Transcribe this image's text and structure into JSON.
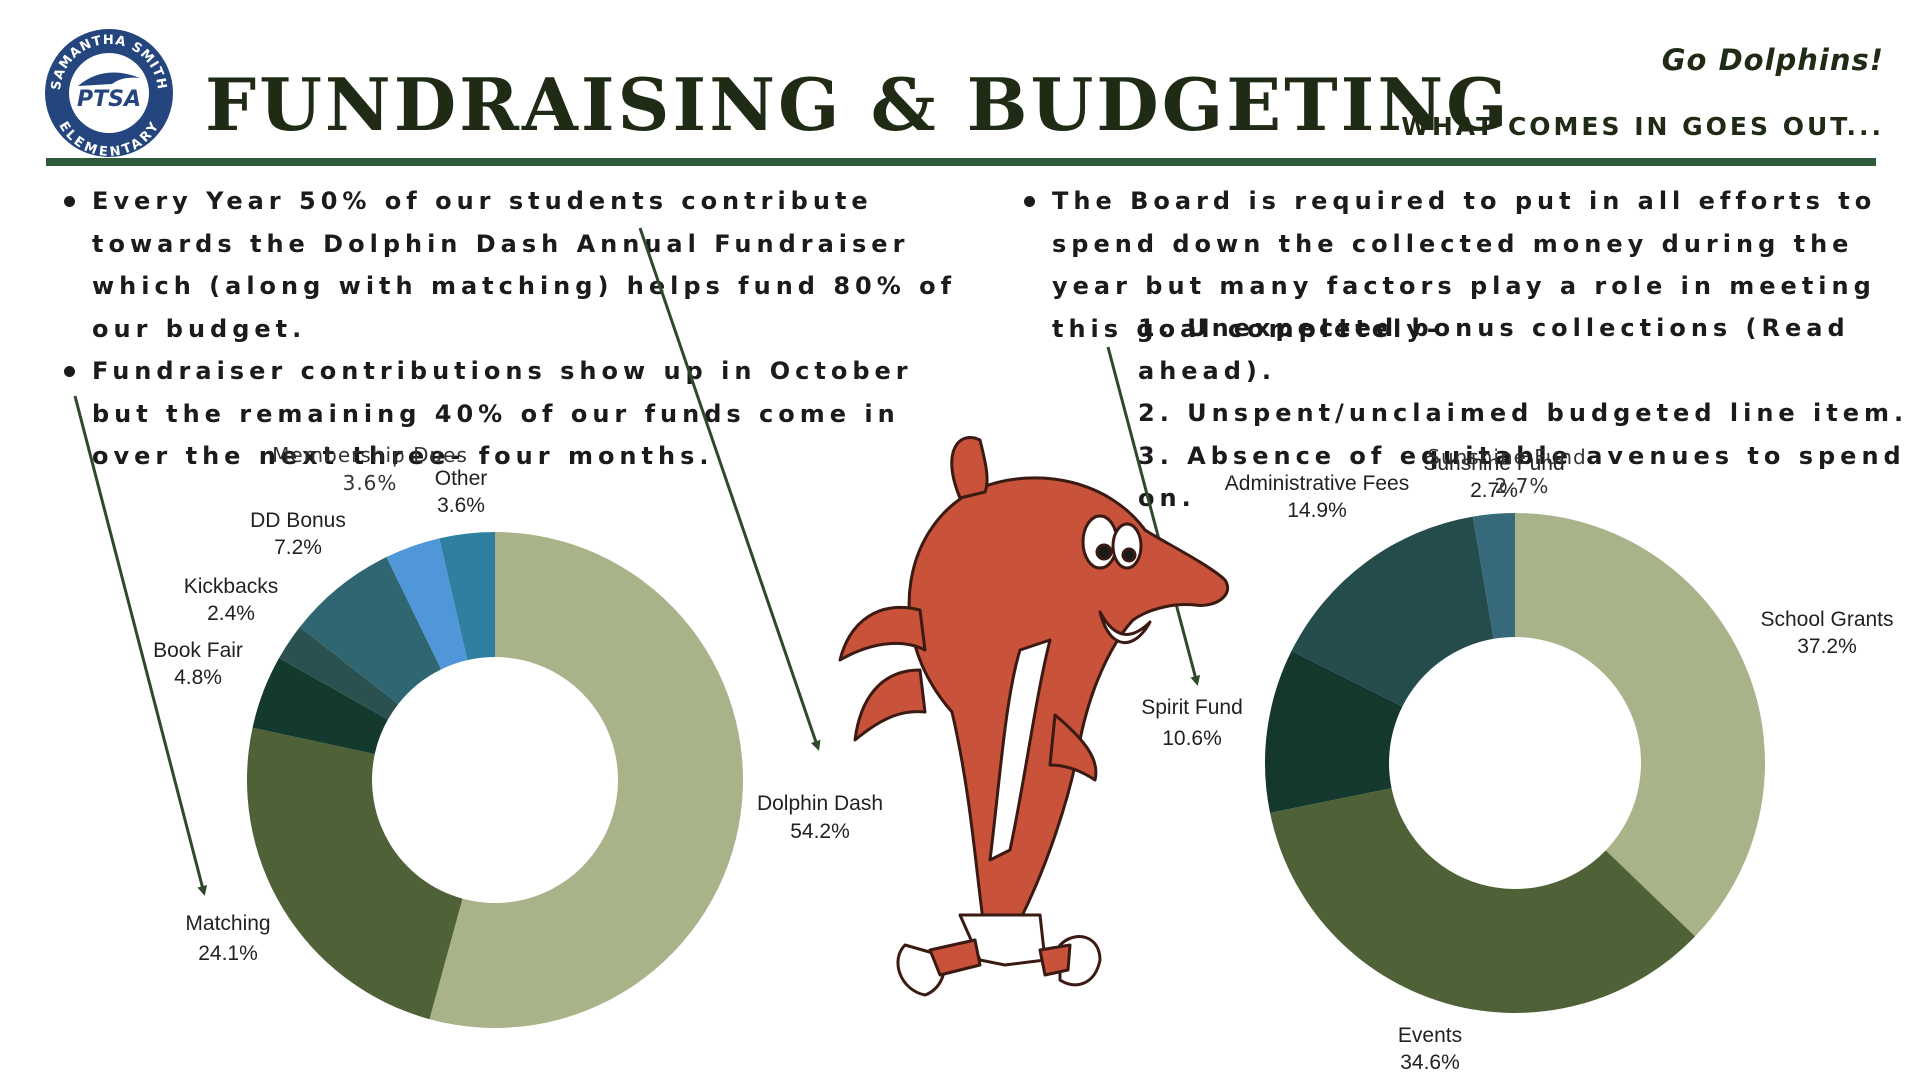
{
  "header": {
    "title": "FUNDRAISING & BUDGETING",
    "tagline": "Go Dolphins!",
    "subtitle": "WHAT COMES IN GOES OUT...",
    "logo_text": [
      "SAMANTHA SMITH",
      "PTSA",
      "ELEMENTARY"
    ]
  },
  "left_bullets": [
    "Every Year 50% of our students contribute towards the Dolphin Dash Annual Fundraiser which (along with matching) helps fund 80% of our budget.",
    "Fundraiser contributions show up in October but the remaining 40% of our funds come in over the next three- four months."
  ],
  "right_bullets": [
    "The Board is required to put in all efforts to spend down the collected money during the year but many factors play a role in meeting this goal completely-"
  ],
  "right_numbered": [
    "1. Unexpected bonus collections (Read ahead).",
    "2. Unspent/unclaimed budgeted line item.",
    "3. Absence of equitable avenues to spend on."
  ],
  "colors": {
    "title": "#1f2b15",
    "rule": "#2e5c3a",
    "arrow": "#2e4a2a",
    "mascot_body": "#c9523a"
  },
  "chart_data": [
    {
      "type": "pie",
      "donut": true,
      "title": "",
      "slices": [
        {
          "label": "Dolphin Dash",
          "value": 54.2,
          "display": "54.2%",
          "color": "#a8b38a"
        },
        {
          "label": "Matching",
          "value": 24.1,
          "display": "24.1%",
          "color": "#4f6137"
        },
        {
          "label": "Book Fair",
          "value": 4.8,
          "display": "4.8%",
          "color": "#143a2e"
        },
        {
          "label": "Kickbacks",
          "value": 2.4,
          "display": "2.4%",
          "color": "#2a5050"
        },
        {
          "label": "DD Bonus",
          "value": 7.2,
          "display": "7.2%",
          "color": "#2f6672"
        },
        {
          "label": "Membership Dues",
          "value": 3.6,
          "display": "3.6%",
          "color": "#4f97d8"
        },
        {
          "label": "Other",
          "value": 3.6,
          "display": "3.6%",
          "color": "#2f7fa0"
        }
      ]
    },
    {
      "type": "pie",
      "donut": true,
      "title": "",
      "slices": [
        {
          "label": "School Grants",
          "value": 37.2,
          "display": "37.2%",
          "color": "#a8b38a"
        },
        {
          "label": "Events",
          "value": 34.6,
          "display": "34.6%",
          "color": "#4f6137"
        },
        {
          "label": "Spirit Fund",
          "value": 10.6,
          "display": "10.6%",
          "color": "#14382d"
        },
        {
          "label": "Administrative Fees",
          "value": 14.9,
          "display": "14.9%",
          "color": "#254c4c"
        },
        {
          "label": "Sunshine Fund",
          "value": 2.7,
          "display": "2.7%",
          "color": "#366a7a"
        }
      ]
    }
  ]
}
